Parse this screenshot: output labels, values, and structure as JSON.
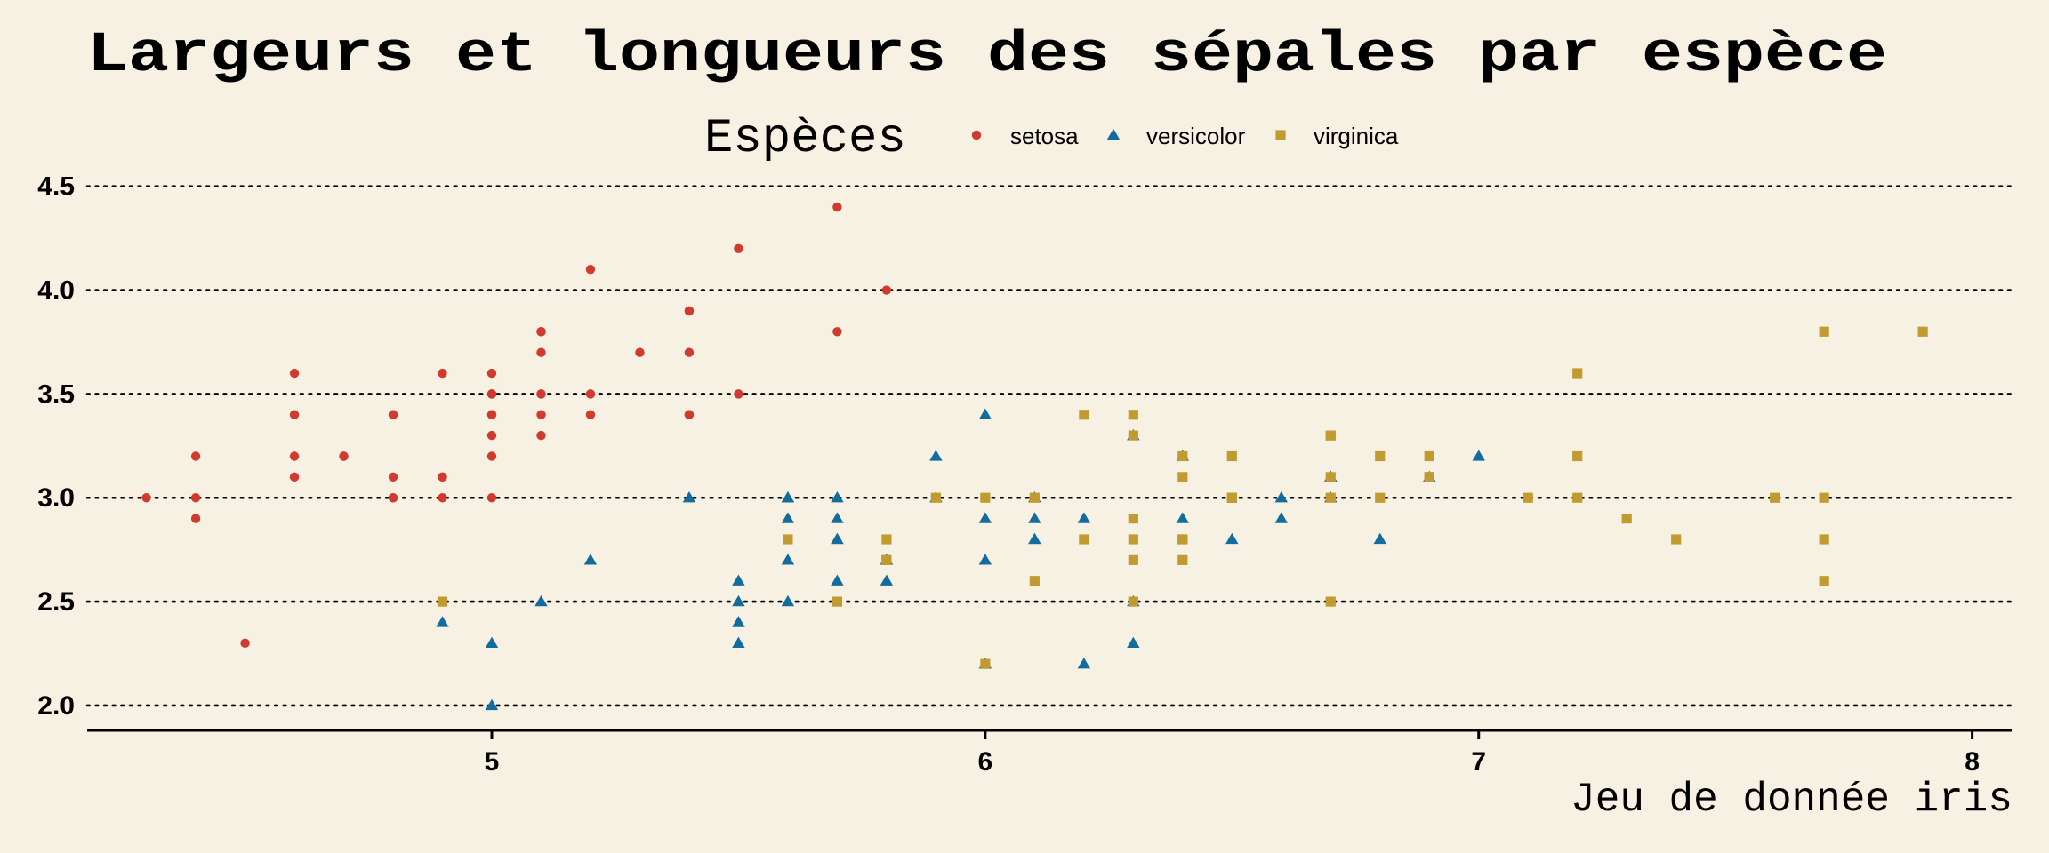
{
  "chart_data": {
    "type": "scatter",
    "title": "Largeurs et longueurs des sépales par espèce",
    "legend_title": "Espèces",
    "legend_position": "top",
    "caption": "Jeu de donnée iris",
    "xlabel": "",
    "ylabel": "",
    "xlim": [
      4.18,
      8.08
    ],
    "ylim": [
      1.88,
      4.52
    ],
    "xticks": [
      5,
      6,
      7,
      8
    ],
    "yticks": [
      2.0,
      2.5,
      3.0,
      3.5,
      4.0,
      4.5
    ],
    "ytick_labels": [
      "2.0",
      "2.5",
      "3.0",
      "3.5",
      "4.0",
      "4.5"
    ],
    "grid": "horizontal dotted",
    "series": [
      {
        "name": "setosa",
        "color": "#d03a2f",
        "marker": "circle",
        "points": [
          [
            5.1,
            3.5
          ],
          [
            4.9,
            3.0
          ],
          [
            4.7,
            3.2
          ],
          [
            4.6,
            3.1
          ],
          [
            5.0,
            3.6
          ],
          [
            5.4,
            3.9
          ],
          [
            4.6,
            3.4
          ],
          [
            5.0,
            3.4
          ],
          [
            4.4,
            2.9
          ],
          [
            4.9,
            3.1
          ],
          [
            5.4,
            3.7
          ],
          [
            4.8,
            3.4
          ],
          [
            4.8,
            3.0
          ],
          [
            4.3,
            3.0
          ],
          [
            5.8,
            4.0
          ],
          [
            5.7,
            4.4
          ],
          [
            5.4,
            3.9
          ],
          [
            5.1,
            3.5
          ],
          [
            5.7,
            3.8
          ],
          [
            5.1,
            3.8
          ],
          [
            5.4,
            3.4
          ],
          [
            5.1,
            3.7
          ],
          [
            4.6,
            3.6
          ],
          [
            5.1,
            3.3
          ],
          [
            4.8,
            3.4
          ],
          [
            5.0,
            3.0
          ],
          [
            5.0,
            3.4
          ],
          [
            5.2,
            3.5
          ],
          [
            5.2,
            3.4
          ],
          [
            4.7,
            3.2
          ],
          [
            4.8,
            3.1
          ],
          [
            5.4,
            3.4
          ],
          [
            5.2,
            4.1
          ],
          [
            5.5,
            4.2
          ],
          [
            4.9,
            3.1
          ],
          [
            5.0,
            3.2
          ],
          [
            5.5,
            3.5
          ],
          [
            4.9,
            3.6
          ],
          [
            4.4,
            3.0
          ],
          [
            5.1,
            3.4
          ],
          [
            5.0,
            3.5
          ],
          [
            4.5,
            2.3
          ],
          [
            4.4,
            3.2
          ],
          [
            5.0,
            3.5
          ],
          [
            5.1,
            3.8
          ],
          [
            4.8,
            3.0
          ],
          [
            5.1,
            3.8
          ],
          [
            4.6,
            3.2
          ],
          [
            5.3,
            3.7
          ],
          [
            5.0,
            3.3
          ]
        ]
      },
      {
        "name": "versicolor",
        "color": "#136c9e",
        "marker": "triangle",
        "points": [
          [
            7.0,
            3.2
          ],
          [
            6.4,
            3.2
          ],
          [
            6.9,
            3.1
          ],
          [
            5.5,
            2.3
          ],
          [
            6.5,
            2.8
          ],
          [
            5.7,
            2.8
          ],
          [
            6.3,
            3.3
          ],
          [
            4.9,
            2.4
          ],
          [
            6.6,
            2.9
          ],
          [
            5.2,
            2.7
          ],
          [
            5.0,
            2.0
          ],
          [
            5.9,
            3.0
          ],
          [
            6.0,
            2.2
          ],
          [
            6.1,
            2.9
          ],
          [
            5.6,
            2.9
          ],
          [
            6.7,
            3.1
          ],
          [
            5.6,
            3.0
          ],
          [
            5.8,
            2.7
          ],
          [
            6.2,
            2.2
          ],
          [
            5.6,
            2.5
          ],
          [
            5.9,
            3.2
          ],
          [
            6.1,
            2.8
          ],
          [
            6.3,
            2.5
          ],
          [
            6.1,
            2.8
          ],
          [
            6.4,
            2.9
          ],
          [
            6.6,
            3.0
          ],
          [
            6.8,
            2.8
          ],
          [
            6.7,
            3.0
          ],
          [
            6.0,
            2.9
          ],
          [
            5.7,
            2.6
          ],
          [
            5.5,
            2.4
          ],
          [
            5.5,
            2.4
          ],
          [
            5.8,
            2.7
          ],
          [
            6.0,
            2.7
          ],
          [
            5.4,
            3.0
          ],
          [
            6.0,
            3.4
          ],
          [
            6.7,
            3.1
          ],
          [
            6.3,
            2.3
          ],
          [
            5.6,
            3.0
          ],
          [
            5.5,
            2.5
          ],
          [
            5.5,
            2.6
          ],
          [
            6.1,
            3.0
          ],
          [
            5.8,
            2.6
          ],
          [
            5.0,
            2.3
          ],
          [
            5.6,
            2.7
          ],
          [
            5.7,
            3.0
          ],
          [
            5.7,
            2.9
          ],
          [
            6.2,
            2.9
          ],
          [
            5.1,
            2.5
          ],
          [
            5.7,
            2.8
          ]
        ]
      },
      {
        "name": "virginica",
        "color": "#c29b30",
        "marker": "square",
        "points": [
          [
            6.3,
            3.3
          ],
          [
            5.8,
            2.7
          ],
          [
            7.1,
            3.0
          ],
          [
            6.3,
            2.9
          ],
          [
            6.5,
            3.0
          ],
          [
            7.6,
            3.0
          ],
          [
            4.9,
            2.5
          ],
          [
            7.3,
            2.9
          ],
          [
            6.7,
            2.5
          ],
          [
            7.2,
            3.6
          ],
          [
            6.5,
            3.2
          ],
          [
            6.4,
            2.7
          ],
          [
            6.8,
            3.0
          ],
          [
            5.7,
            2.5
          ],
          [
            5.8,
            2.8
          ],
          [
            6.4,
            3.2
          ],
          [
            6.5,
            3.0
          ],
          [
            7.7,
            3.8
          ],
          [
            7.7,
            2.6
          ],
          [
            6.0,
            2.2
          ],
          [
            6.9,
            3.2
          ],
          [
            5.6,
            2.8
          ],
          [
            7.7,
            2.8
          ],
          [
            6.3,
            2.7
          ],
          [
            6.7,
            3.3
          ],
          [
            7.2,
            3.2
          ],
          [
            6.2,
            2.8
          ],
          [
            6.1,
            3.0
          ],
          [
            6.4,
            2.8
          ],
          [
            7.2,
            3.0
          ],
          [
            7.4,
            2.8
          ],
          [
            7.9,
            3.8
          ],
          [
            6.4,
            2.8
          ],
          [
            6.3,
            2.8
          ],
          [
            6.1,
            2.6
          ],
          [
            7.7,
            3.0
          ],
          [
            6.3,
            3.4
          ],
          [
            6.4,
            3.1
          ],
          [
            6.0,
            3.0
          ],
          [
            6.9,
            3.1
          ],
          [
            6.7,
            3.1
          ],
          [
            6.9,
            3.1
          ],
          [
            5.8,
            2.7
          ],
          [
            6.8,
            3.2
          ],
          [
            6.7,
            3.3
          ],
          [
            6.7,
            3.0
          ],
          [
            6.3,
            2.5
          ],
          [
            6.5,
            3.0
          ],
          [
            6.2,
            3.4
          ],
          [
            5.9,
            3.0
          ]
        ]
      }
    ]
  }
}
